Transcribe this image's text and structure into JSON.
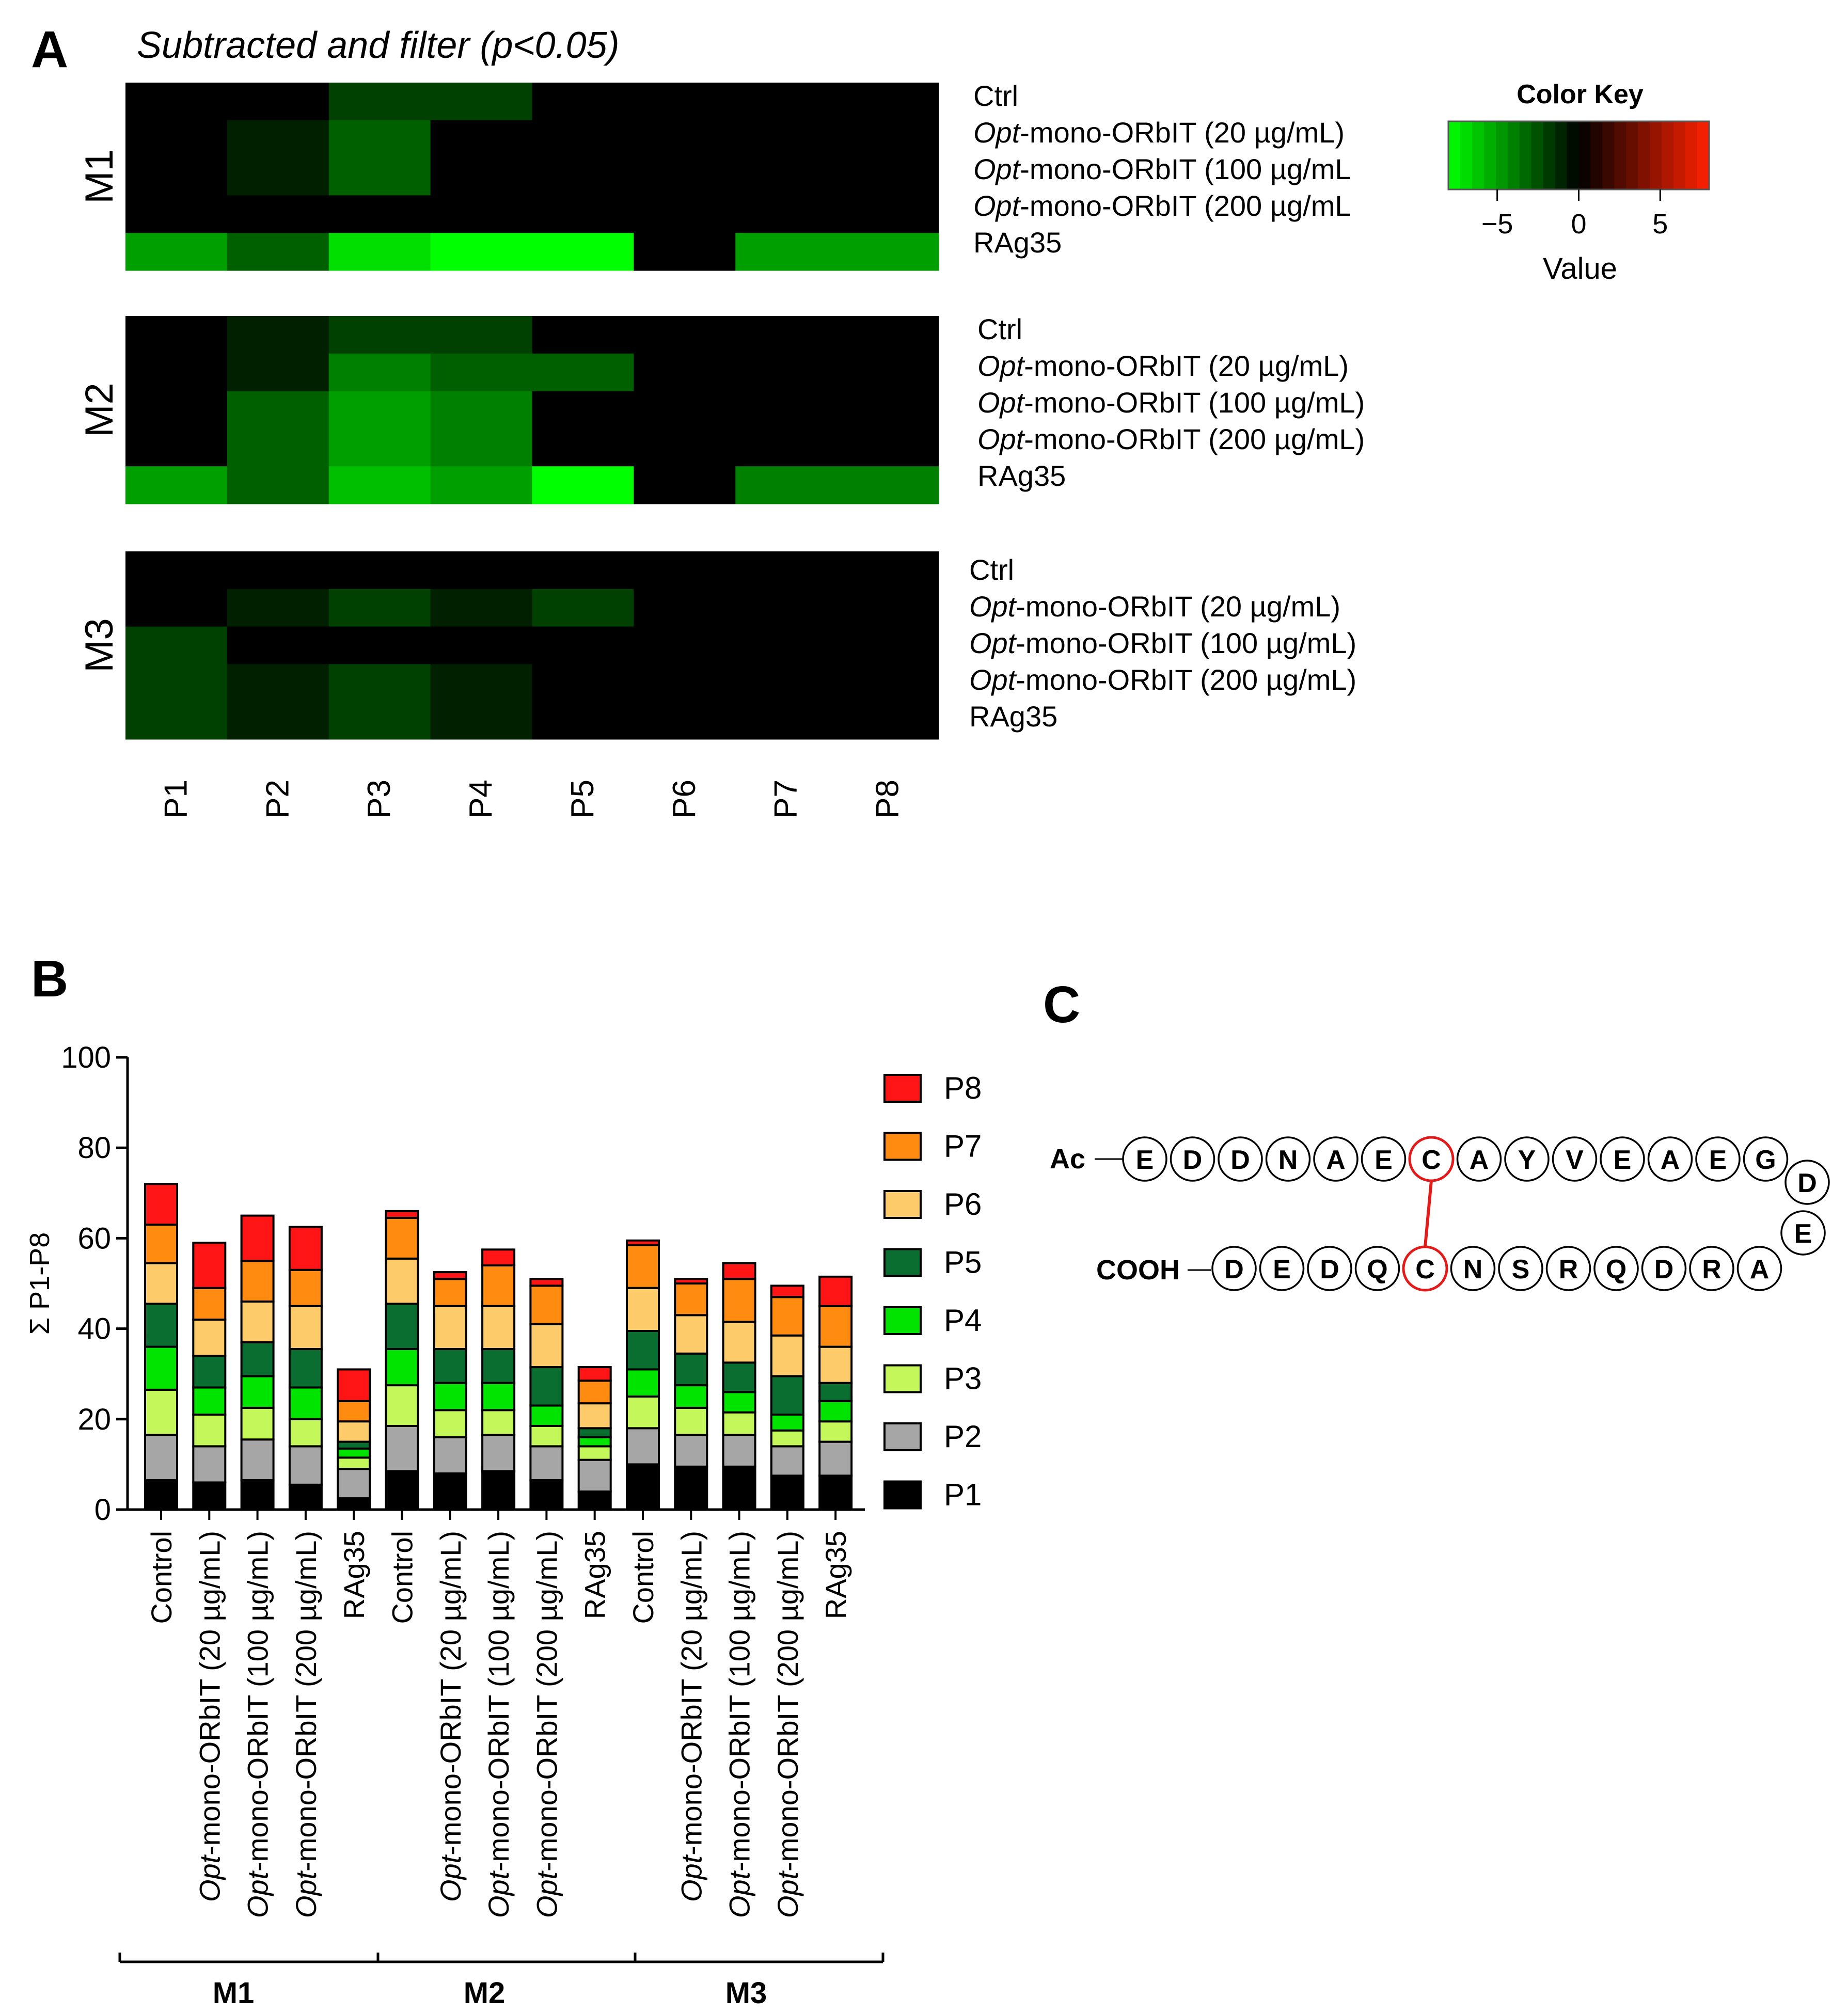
{
  "panels": {
    "a": "A",
    "b": "B",
    "c": "C"
  },
  "heatmap": {
    "title": "Subtracted and filter (p<0.05)",
    "columns": [
      "P1",
      "P2",
      "P3",
      "P4",
      "P5",
      "P6",
      "P7",
      "P8"
    ],
    "blocks": [
      {
        "label": "M1",
        "row_labels": [
          {
            "prefix": "",
            "text": "Ctrl"
          },
          {
            "prefix": "Opt",
            "text": "-mono-ORbIT (20 µg/mL)"
          },
          {
            "prefix": "Opt",
            "text": "-mono-ORbIT (100 µg/mL"
          },
          {
            "prefix": "Opt",
            "text": "-mono-ORbIT (200 µg/mL"
          },
          {
            "prefix": "",
            "text": "RAg35"
          }
        ],
        "values": [
          [
            0,
            0,
            -2,
            -2,
            0,
            0,
            0,
            0
          ],
          [
            0,
            -1,
            -3,
            0,
            0,
            0,
            0,
            0
          ],
          [
            0,
            -1,
            -3,
            0,
            0,
            0,
            0,
            0
          ],
          [
            0,
            0,
            0,
            0,
            0,
            0,
            0,
            0
          ],
          [
            -5,
            -3,
            -7,
            -8,
            -8,
            0,
            -5,
            -5
          ]
        ]
      },
      {
        "label": "M2",
        "row_labels": [
          {
            "prefix": "",
            "text": "Ctrl"
          },
          {
            "prefix": "Opt",
            "text": "-mono-ORbIT (20 µg/mL)"
          },
          {
            "prefix": "Opt",
            "text": "-mono-ORbIT (100 µg/mL)"
          },
          {
            "prefix": "Opt",
            "text": "-mono-ORbIT (200 µg/mL)"
          },
          {
            "prefix": "",
            "text": "RAg35"
          }
        ],
        "values": [
          [
            0,
            -1,
            -2,
            -2,
            0,
            0,
            0,
            0
          ],
          [
            0,
            -1,
            -4,
            -3,
            -3,
            0,
            0,
            0
          ],
          [
            0,
            -3,
            -5,
            -4,
            0,
            0,
            0,
            0
          ],
          [
            0,
            -3,
            -5,
            -4,
            0,
            0,
            0,
            0
          ],
          [
            -5,
            -3,
            -6,
            -5,
            -8,
            0,
            -4,
            -4
          ]
        ]
      },
      {
        "label": "M3",
        "row_labels": [
          {
            "prefix": "",
            "text": "Ctrl"
          },
          {
            "prefix": "Opt",
            "text": "-mono-ORbIT (20 µg/mL)"
          },
          {
            "prefix": "Opt",
            "text": "-mono-ORbIT (100 µg/mL)"
          },
          {
            "prefix": "Opt",
            "text": "-mono-ORbIT (200 µg/mL)"
          },
          {
            "prefix": "",
            "text": "RAg35"
          }
        ],
        "values": [
          [
            0,
            0,
            0,
            0,
            0,
            0,
            0,
            0
          ],
          [
            0,
            -1,
            -2,
            -1,
            -2,
            0,
            0,
            0
          ],
          [
            -2,
            0,
            0,
            0,
            0,
            0,
            0,
            0
          ],
          [
            -2,
            -1,
            -2,
            -1,
            0,
            0,
            0,
            0
          ],
          [
            -2,
            -1,
            -2,
            -1,
            0,
            0,
            0,
            0
          ]
        ]
      }
    ],
    "color_key": {
      "title": "Color Key",
      "xlabel": "Value",
      "ticks": [
        "−5",
        "0",
        "5"
      ],
      "tick_values": [
        -5,
        0,
        5
      ],
      "range": [
        -8,
        8
      ],
      "low_color": "#00ff00",
      "mid_color": "#000000",
      "high_color": "#ff2200"
    }
  },
  "chart_data": {
    "type": "bar",
    "stacked": true,
    "ylabel": "Σ P1-P8",
    "ylim": [
      0,
      100
    ],
    "yticks": [
      "0",
      "20",
      "40",
      "60",
      "80",
      "100"
    ],
    "categories": [
      {
        "prefix": "",
        "text": "Control"
      },
      {
        "prefix": "Opt",
        "text": "-mono-ORbIT (20 µg/mL)"
      },
      {
        "prefix": "Opt",
        "text": "-mono-ORbIT (100 µg/mL)"
      },
      {
        "prefix": "Opt",
        "text": "-mono-ORbIT (200 µg/mL)"
      },
      {
        "prefix": "",
        "text": "RAg35"
      },
      {
        "prefix": "",
        "text": "Control"
      },
      {
        "prefix": "Opt",
        "text": "-mono-ORbIT (20 µg/mL)"
      },
      {
        "prefix": "Opt",
        "text": "-mono-ORbIT (100 µg/mL)"
      },
      {
        "prefix": "Opt",
        "text": "-mono-ORbIT (200 µg/mL)"
      },
      {
        "prefix": "",
        "text": "RAg35"
      },
      {
        "prefix": "",
        "text": "Control"
      },
      {
        "prefix": "Opt",
        "text": "-mono-ORbIT (20 µg/mL)"
      },
      {
        "prefix": "Opt",
        "text": "-mono-ORbIT (100 µg/mL)"
      },
      {
        "prefix": "Opt",
        "text": "-mono-ORbIT (200 µg/mL)"
      },
      {
        "prefix": "",
        "text": "RAg35"
      }
    ],
    "groups": [
      {
        "name": "M1",
        "start": 0,
        "end": 4
      },
      {
        "name": "M2",
        "start": 5,
        "end": 9
      },
      {
        "name": "M3",
        "start": 10,
        "end": 14
      }
    ],
    "series": [
      {
        "name": "P1",
        "color": "#000000",
        "values": [
          6.5,
          6,
          6.5,
          5.5,
          2.5,
          8.5,
          8,
          8.5,
          6.5,
          4,
          10,
          9.5,
          9.5,
          7.5,
          7.5
        ]
      },
      {
        "name": "P2",
        "color": "#a6a6a6",
        "values": [
          10,
          8,
          9,
          8.5,
          6.5,
          10,
          8,
          8,
          7.5,
          7,
          8,
          7,
          7,
          6.5,
          7.5
        ]
      },
      {
        "name": "P3",
        "color": "#c4f75a",
        "values": [
          10,
          7,
          7,
          6,
          2.5,
          9,
          6,
          5.5,
          4.5,
          3,
          7,
          6,
          5,
          3.5,
          4.5
        ]
      },
      {
        "name": "P4",
        "color": "#00e400",
        "values": [
          9.5,
          6,
          7,
          7,
          2,
          8,
          6,
          6,
          4.5,
          2,
          6,
          5,
          4.5,
          3.5,
          4.5
        ]
      },
      {
        "name": "P5",
        "color": "#0a6e30",
        "values": [
          9.5,
          7,
          7.5,
          8.5,
          1.5,
          10,
          7.5,
          7.5,
          8.5,
          2,
          8.5,
          7,
          6.5,
          8.5,
          4
        ]
      },
      {
        "name": "P6",
        "color": "#fecb6a",
        "values": [
          9,
          8,
          9,
          9.5,
          4.5,
          10,
          9.5,
          9.5,
          9.5,
          5.5,
          9.5,
          8.5,
          9,
          9,
          8
        ]
      },
      {
        "name": "P7",
        "color": "#ff8c10",
        "values": [
          8.5,
          7,
          9,
          8,
          4.5,
          9,
          6,
          9,
          8.5,
          5,
          9.5,
          7,
          9.5,
          8.5,
          9
        ]
      },
      {
        "name": "P8",
        "color": "#ff1515",
        "values": [
          9,
          10,
          10,
          9.5,
          7,
          1.5,
          1.5,
          3.5,
          1.5,
          3,
          1,
          1,
          3.5,
          2.5,
          6.5
        ]
      }
    ]
  },
  "peptide": {
    "n_term": "Ac",
    "c_term": "COOH",
    "top_strand": [
      "E",
      "D",
      "D",
      "N",
      "A",
      "E",
      "C",
      "A",
      "Y",
      "V",
      "E",
      "A",
      "E",
      "G"
    ],
    "turn": [
      "D",
      "E"
    ],
    "bottom_strand": [
      "D",
      "E",
      "D",
      "Q",
      "C",
      "N",
      "S",
      "R",
      "Q",
      "D",
      "R",
      "A"
    ],
    "bond_color": "#e31a1a",
    "highlight": "C"
  }
}
